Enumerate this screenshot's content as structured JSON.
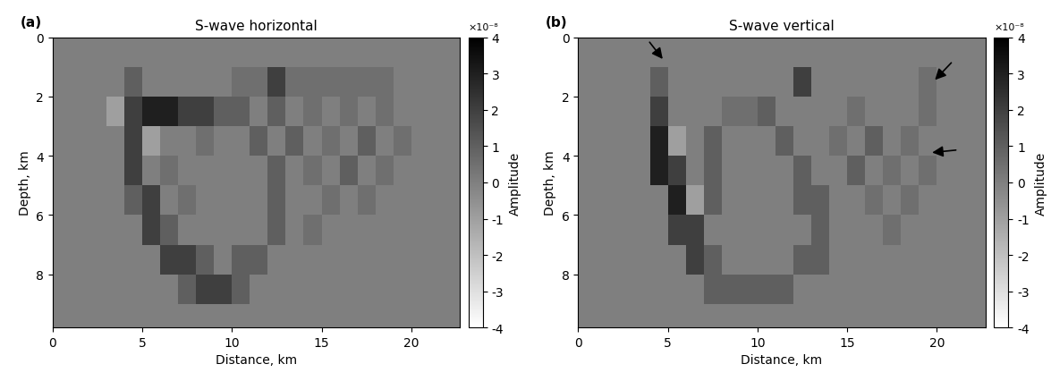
{
  "chart_data": [
    {
      "type": "heatmap",
      "panel_label": "(a)",
      "title": "S-wave horizontal",
      "x_label": "Distance, km",
      "y_label": "Depth, km",
      "xlim": [
        0,
        22.7
      ],
      "ylim": [
        9.8,
        0
      ],
      "xticks": [
        0,
        5,
        10,
        15,
        20
      ],
      "yticks": [
        0,
        2,
        4,
        6,
        8
      ],
      "x_edges": [
        0,
        1,
        2,
        3,
        4,
        5,
        6,
        7,
        8,
        9,
        10,
        11,
        12,
        13,
        14,
        15,
        16,
        17,
        18,
        19,
        20,
        21,
        22,
        22.7
      ],
      "y_edges": [
        0,
        1,
        2,
        3,
        4,
        5,
        6,
        7,
        8,
        9,
        9.8
      ],
      "cells": [
        [
          0,
          0,
          0,
          0,
          0,
          0,
          0,
          0,
          0,
          0,
          0,
          0,
          0,
          0,
          0,
          0,
          0,
          0,
          0,
          0,
          0,
          0,
          0
        ],
        [
          0,
          0,
          0,
          0,
          1,
          0,
          0,
          0,
          0,
          0,
          0.5,
          0.5,
          2,
          0.5,
          0.5,
          0.5,
          0.5,
          0.5,
          0.5,
          0,
          0,
          0,
          0
        ],
        [
          0,
          0,
          0,
          -1,
          2,
          3,
          3,
          2,
          2,
          1,
          1,
          0,
          1,
          0,
          0.5,
          0,
          0.5,
          0,
          0.5,
          0,
          0,
          0,
          0
        ],
        [
          0,
          0,
          0,
          0,
          2,
          -1,
          0,
          0,
          0.5,
          0,
          0,
          1,
          0,
          1,
          0,
          0.5,
          0,
          1,
          0,
          0.5,
          0,
          0,
          0
        ],
        [
          0,
          0,
          0,
          0,
          2,
          0,
          0.5,
          0,
          0,
          0,
          0,
          0,
          1,
          0,
          0.5,
          0,
          1,
          0,
          0.5,
          0,
          0,
          0,
          0
        ],
        [
          0,
          0,
          0,
          0,
          1,
          2,
          0,
          0.5,
          0,
          0,
          0,
          0,
          1,
          0,
          0,
          0.5,
          0,
          0.5,
          0,
          0,
          0,
          0,
          0
        ],
        [
          0,
          0,
          0,
          0,
          0,
          2,
          1,
          0,
          0,
          0,
          0,
          0,
          1,
          0,
          0.5,
          0,
          0,
          0,
          0,
          0,
          0,
          0,
          0
        ],
        [
          0,
          0,
          0,
          0,
          0,
          0,
          2,
          2,
          1,
          0,
          1,
          1,
          0,
          0,
          0,
          0,
          0,
          0,
          0,
          0,
          0,
          0,
          0
        ],
        [
          0,
          0,
          0,
          0,
          0,
          0,
          0,
          1,
          2,
          2,
          1,
          0,
          0,
          0,
          0,
          0,
          0,
          0,
          0,
          0,
          0,
          0,
          0
        ],
        [
          0,
          0,
          0,
          0,
          0,
          0,
          0,
          0,
          0,
          0,
          0,
          0,
          0,
          0,
          0,
          0,
          0,
          0,
          0,
          0,
          0,
          0,
          0
        ]
      ],
      "colorbar": {
        "label": "Amplitude",
        "multiplier": "×10⁻⁸",
        "range": [
          -4,
          4
        ],
        "ticks": [
          -4,
          -3,
          -2,
          -1,
          0,
          1,
          2,
          3,
          4
        ]
      }
    },
    {
      "type": "heatmap",
      "panel_label": "(b)",
      "title": "S-wave vertical",
      "x_label": "Distance, km",
      "y_label": "Depth, km",
      "xlim": [
        0,
        22.7
      ],
      "ylim": [
        9.8,
        0
      ],
      "xticks": [
        0,
        5,
        10,
        15,
        20
      ],
      "yticks": [
        0,
        2,
        4,
        6,
        8
      ],
      "x_edges": [
        0,
        1,
        2,
        3,
        4,
        5,
        6,
        7,
        8,
        9,
        10,
        11,
        12,
        13,
        14,
        15,
        16,
        17,
        18,
        19,
        20,
        21,
        22,
        22.7
      ],
      "y_edges": [
        0,
        1,
        2,
        3,
        4,
        5,
        6,
        7,
        8,
        9,
        9.8
      ],
      "cells": [
        [
          0,
          0,
          0,
          0,
          0,
          0,
          0,
          0,
          0,
          0,
          0,
          0,
          0,
          0,
          0,
          0,
          0,
          0,
          0,
          0,
          0,
          0,
          0
        ],
        [
          0,
          0,
          0,
          0,
          1,
          0,
          0,
          0,
          0,
          0,
          0,
          0,
          2,
          0,
          0,
          0,
          0,
          0,
          0,
          0.5,
          0,
          0,
          0
        ],
        [
          0,
          0,
          0,
          0,
          2,
          0,
          0,
          0,
          0.5,
          0.5,
          1,
          0,
          0,
          0,
          0,
          0.5,
          0,
          0,
          0,
          0.5,
          0,
          0,
          0
        ],
        [
          0,
          0,
          0,
          0,
          3,
          -1,
          0,
          1,
          0,
          0,
          0,
          1,
          0,
          0,
          0.5,
          0,
          1,
          0,
          0.5,
          0,
          0,
          0,
          0
        ],
        [
          0,
          0,
          0,
          0,
          3,
          2,
          0,
          1,
          0,
          0,
          0,
          0,
          1,
          0,
          0,
          1,
          0,
          0.5,
          0,
          0.5,
          0,
          0,
          0
        ],
        [
          0,
          0,
          0,
          0,
          0,
          3,
          -1,
          1,
          0,
          0,
          0,
          0,
          1,
          1,
          0,
          0,
          0.5,
          0,
          0.5,
          0,
          0,
          0,
          0
        ],
        [
          0,
          0,
          0,
          0,
          0,
          2,
          2,
          0,
          0,
          0,
          0,
          0,
          0,
          1,
          0,
          0,
          0,
          0.5,
          0,
          0,
          0,
          0,
          0
        ],
        [
          0,
          0,
          0,
          0,
          0,
          0,
          2,
          1,
          0,
          0,
          0,
          0,
          1,
          1,
          0,
          0,
          0,
          0,
          0,
          0,
          0,
          0,
          0
        ],
        [
          0,
          0,
          0,
          0,
          0,
          0,
          0,
          1,
          1,
          1,
          1,
          1,
          0,
          0,
          0,
          0,
          0,
          0,
          0,
          0,
          0,
          0,
          0
        ],
        [
          0,
          0,
          0,
          0,
          0,
          0,
          0,
          0,
          0,
          0,
          0,
          0,
          0,
          0,
          0,
          0,
          0,
          0,
          0,
          0,
          0,
          0,
          0
        ]
      ],
      "colorbar": {
        "label": "Amplitude",
        "multiplier": "×10⁻⁸",
        "range": [
          -4,
          4
        ],
        "ticks": [
          -4,
          -3,
          -2,
          -1,
          0,
          1,
          2,
          3,
          4
        ]
      }
    }
  ]
}
